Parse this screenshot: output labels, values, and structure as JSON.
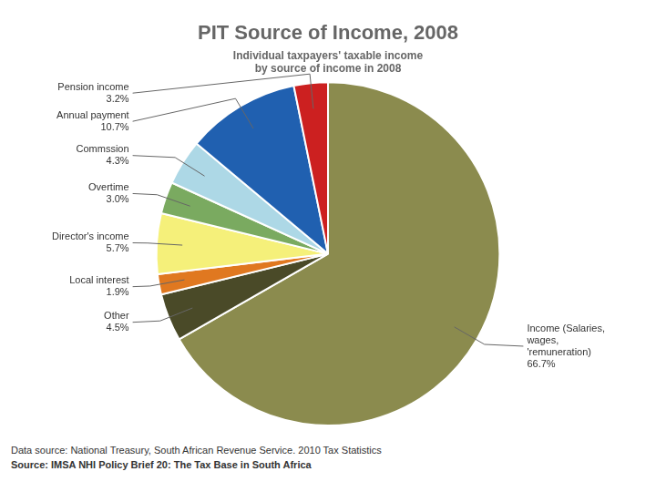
{
  "chart_data": {
    "type": "pie",
    "title": "PIT Source of Income, 2008",
    "subtitle": "Individual taxpayers' taxable income\nby source of income in 2008",
    "categories": [
      "Income (Salaries,\nwages,\n'remuneration)",
      "Other",
      "Local interest",
      "Director's income",
      "Overtime",
      "Commssion",
      "Annual payment",
      "Pension income"
    ],
    "values": [
      66.7,
      4.5,
      1.9,
      5.7,
      3.0,
      4.3,
      10.7,
      3.2
    ],
    "value_labels": [
      "66.7%",
      "4.5%",
      "1.9%",
      "5.7%",
      "3.0%",
      "4.3%",
      "10.7%",
      "3.2%"
    ],
    "colors": [
      "#8B8B4E",
      "#4A4A28",
      "#E07820",
      "#F5F07A",
      "#7AAA60",
      "#ADD8E6",
      "#2060B0",
      "#CC2020"
    ],
    "data_labels": true,
    "annotations": [
      "Data source: National Treasury, South African Revenue Service. 2010 Tax Statistics",
      "Source: IMSA NHI Policy Brief 20: The Tax Base in South Africa"
    ]
  }
}
